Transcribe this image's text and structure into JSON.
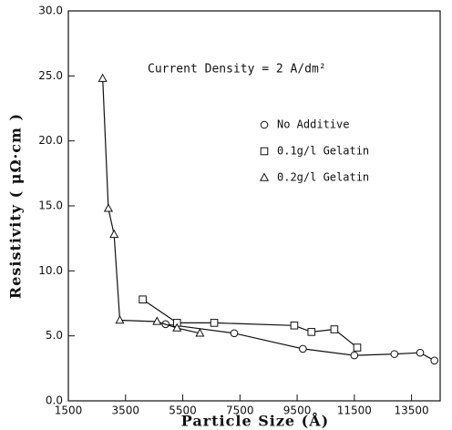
{
  "chart_data": {
    "type": "line",
    "annotation": "Current Density = 2 A/dm²",
    "x_label": "Particle Size (Å)",
    "y_label": "Resistivity ( μΩ·cm )",
    "xlim": [
      1500,
      14500
    ],
    "xticks": [
      1500,
      3500,
      5500,
      7500,
      9500,
      11500,
      13500
    ],
    "ylim": [
      0,
      30
    ],
    "yticks": [
      {
        "value": 0,
        "label": "0.0"
      },
      {
        "value": 5,
        "label": "5.0"
      },
      {
        "value": 10,
        "label": "10.0"
      },
      {
        "value": 15,
        "label": "15.0"
      },
      {
        "value": 20,
        "label": "20.0"
      },
      {
        "value": 25,
        "label": "25.0"
      },
      {
        "value": 30,
        "label": "30.0"
      }
    ],
    "series": [
      {
        "name": "No Additive",
        "marker": "circle",
        "color": "#111111",
        "x": [
          4900,
          7300,
          9700,
          11500,
          12900,
          13800,
          14300
        ],
        "values": [
          5.9,
          5.2,
          4.0,
          3.5,
          3.6,
          3.7,
          3.1
        ]
      },
      {
        "name": "0.1g/l Gelatin",
        "marker": "square",
        "color": "#111111",
        "x": [
          4100,
          5300,
          6600,
          9400,
          10000,
          10800,
          11600
        ],
        "values": [
          7.8,
          6.0,
          6.0,
          5.8,
          5.3,
          5.5,
          4.1
        ]
      },
      {
        "name": "0.2g/l Gelatin",
        "marker": "triangle",
        "color": "#111111",
        "x": [
          2700,
          2900,
          3100,
          3300,
          4600,
          5300,
          6100
        ],
        "values": [
          24.8,
          14.8,
          12.8,
          6.2,
          6.1,
          5.6,
          5.2
        ]
      }
    ]
  }
}
